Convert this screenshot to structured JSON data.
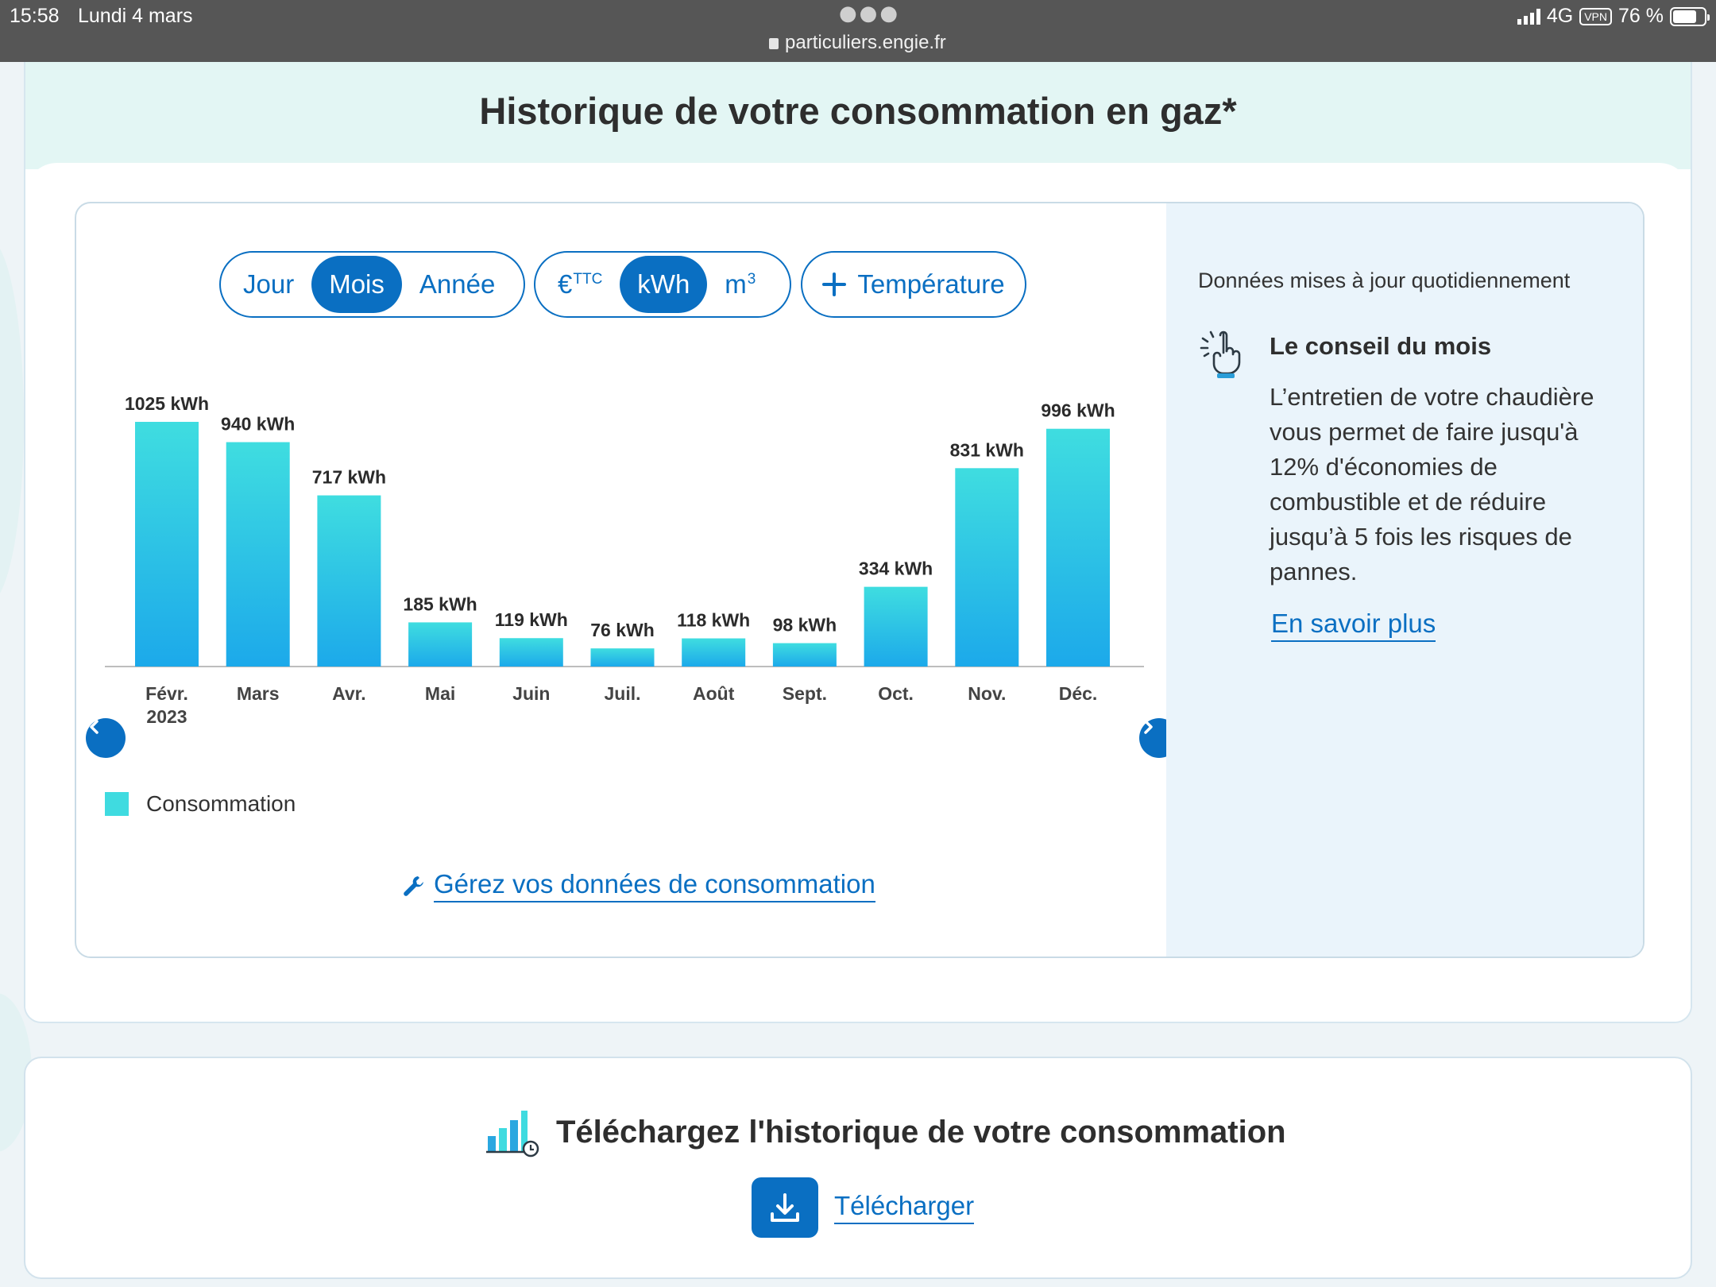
{
  "status_bar": {
    "time": "15:58",
    "date": "Lundi 4 mars",
    "url": "particuliers.engie.fr",
    "network": "4G",
    "vpn": "VPN",
    "battery": "76 %",
    "battery_level": 0.76
  },
  "section": {
    "title": "Historique de votre consommation en gaz*"
  },
  "period_toggle": {
    "options": [
      "Jour",
      "Mois",
      "Année"
    ],
    "selected": "Mois"
  },
  "unit_toggle": {
    "euro": "€",
    "euro_sup": "TTC",
    "kwh": "kWh",
    "m3": "m",
    "m3_sup": "3",
    "selected": "kWh"
  },
  "temperature_button": {
    "label": "Température"
  },
  "chart_data": {
    "type": "bar",
    "categories": [
      "Févr. 2023",
      "Mars",
      "Avr.",
      "Mai",
      "Juin",
      "Juil.",
      "Août",
      "Sept.",
      "Oct.",
      "Nov.",
      "Déc."
    ],
    "category_lines": [
      [
        "Févr.",
        "2023"
      ],
      [
        "Mars"
      ],
      [
        "Avr."
      ],
      [
        "Mai"
      ],
      [
        "Juin"
      ],
      [
        "Juil."
      ],
      [
        "Août"
      ],
      [
        "Sept."
      ],
      [
        "Oct."
      ],
      [
        "Nov."
      ],
      [
        "Déc."
      ]
    ],
    "values": [
      1025,
      940,
      717,
      185,
      119,
      76,
      118,
      98,
      334,
      831,
      996
    ],
    "value_labels": [
      "1025 kWh",
      "940 kWh",
      "717 kWh",
      "185 kWh",
      "119 kWh",
      "76 kWh",
      "118 kWh",
      "98 kWh",
      "334 kWh",
      "831 kWh",
      "996 kWh"
    ],
    "unit": "kWh",
    "series": [
      {
        "name": "Consommation",
        "values": [
          1025,
          940,
          717,
          185,
          119,
          76,
          118,
          98,
          334,
          831,
          996
        ]
      }
    ],
    "ylim": [
      0,
      1025
    ],
    "grid": false,
    "colors": {
      "bar_top": "#3fdde0",
      "bar_bottom": "#1ca9ea"
    }
  },
  "legend": {
    "label": "Consommation",
    "color": "#3fdbe0"
  },
  "manage_link": {
    "label": "Gérez vos données de consommation"
  },
  "side_panel": {
    "updated": "Données mises à jour quotidiennement",
    "tip_title": "Le conseil du mois",
    "tip_body": "L’entretien de votre chaudière vous permet de faire jusqu'à 12% d'économies de combustible et de réduire jusqu’à 5 fois les risques de pannes.",
    "tip_link": "En savoir plus"
  },
  "download": {
    "title": "Téléchargez l'historique de votre consommation",
    "link": "Télécharger"
  },
  "colors": {
    "brand": "#0a6fc2",
    "header_bg": "#e3f6f4",
    "side_bg": "#eaf4fb"
  }
}
